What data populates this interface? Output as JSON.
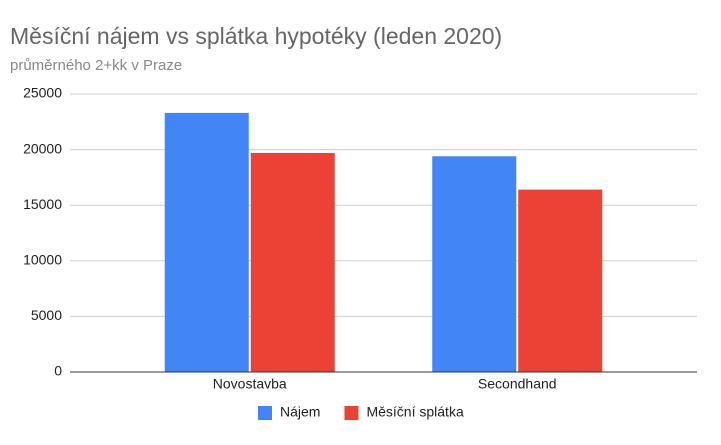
{
  "chart_data": {
    "type": "bar",
    "title": "Měsíční nájem vs splátka hypotéky (leden 2020)",
    "subtitle": "průměrného 2+kk v Praze",
    "categories": [
      "Novostavba",
      "Secondhand"
    ],
    "series": [
      {
        "name": "Nájem",
        "color": "#4285f4",
        "values": [
          23300,
          19400
        ]
      },
      {
        "name": "Měsíční splátka",
        "color": "#ea4335",
        "values": [
          19700,
          16400
        ]
      }
    ],
    "ylim": [
      0,
      25000
    ],
    "yticks": [
      0,
      5000,
      10000,
      15000,
      20000,
      25000
    ],
    "grid": true,
    "legend": "bottom"
  }
}
